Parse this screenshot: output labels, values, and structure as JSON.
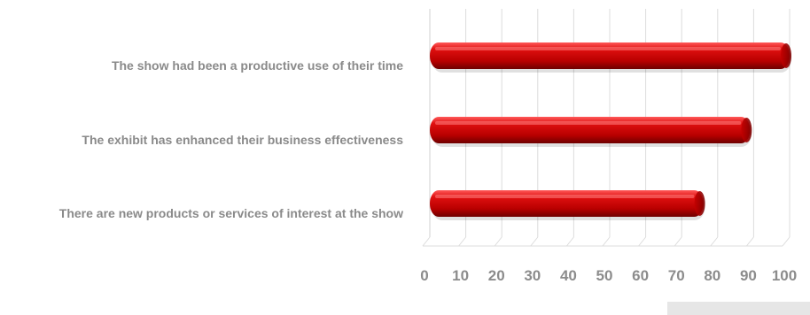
{
  "chart_data": {
    "type": "bar",
    "orientation": "horizontal",
    "categories": [
      "The show had been a productive use of their time",
      "The exhibit has enhanced their business effectiveness",
      "There are new products or services of interest at the show"
    ],
    "values": [
      100,
      89,
      76
    ],
    "xlim": [
      0,
      100
    ],
    "xticks": [
      0,
      10,
      20,
      30,
      40,
      50,
      60,
      70,
      80,
      90,
      100
    ],
    "grid": true,
    "style": "3d-cylinder",
    "colors": {
      "bar": "#cc0000",
      "bar_highlight": "#ff3030",
      "bar_shadow": "#6e0000",
      "grid": "#dcdcdc",
      "text": "#8a8a8a"
    }
  }
}
